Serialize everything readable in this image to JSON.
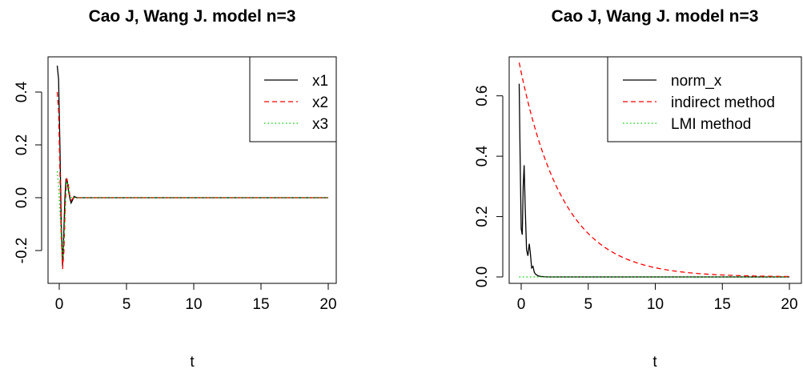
{
  "chart_data": [
    {
      "type": "line",
      "title": "Cao J, Wang J. model n=3",
      "xlabel": "t",
      "ylabel": "",
      "xlim": [
        0,
        20
      ],
      "ylim": [
        -0.3,
        0.5
      ],
      "x_ticks": [
        0,
        5,
        10,
        15,
        20
      ],
      "y_ticks": [
        -0.2,
        0.0,
        0.2,
        0.4
      ],
      "x_tick_labels": [
        "0",
        "5",
        "10",
        "15",
        "20"
      ],
      "y_tick_labels": [
        "-0.2",
        "0.0",
        "0.2",
        "0.4"
      ],
      "legend": "top-right",
      "grid": false,
      "series": [
        {
          "name": "x1",
          "color": "#000000",
          "dash": "solid",
          "points": [
            [
              -0.15,
              0.5
            ],
            [
              -0.05,
              0.45
            ],
            [
              0.05,
              0.2
            ],
            [
              0.15,
              -0.1
            ],
            [
              0.25,
              -0.26
            ],
            [
              0.33,
              -0.15
            ],
            [
              0.42,
              0.0
            ],
            [
              0.5,
              0.07
            ],
            [
              0.58,
              0.07
            ],
            [
              0.68,
              0.03
            ],
            [
              0.78,
              0.0
            ],
            [
              0.88,
              -0.02
            ],
            [
              0.98,
              -0.01
            ],
            [
              1.1,
              0.005
            ],
            [
              1.3,
              0.0
            ],
            [
              1.6,
              0.0
            ],
            [
              2.0,
              0.0
            ],
            [
              20.0,
              0.0
            ]
          ]
        },
        {
          "name": "x2",
          "color": "#ff0000",
          "dash": "dashed",
          "points": [
            [
              -0.15,
              0.4
            ],
            [
              -0.05,
              0.33
            ],
            [
              0.05,
              0.1
            ],
            [
              0.15,
              -0.15
            ],
            [
              0.25,
              -0.27
            ],
            [
              0.35,
              -0.2
            ],
            [
              0.45,
              -0.02
            ],
            [
              0.55,
              0.07
            ],
            [
              0.65,
              0.06
            ],
            [
              0.78,
              0.01
            ],
            [
              0.9,
              -0.01
            ],
            [
              1.05,
              0.0
            ],
            [
              1.3,
              0.0
            ],
            [
              2.0,
              0.0
            ],
            [
              20.0,
              0.0
            ]
          ]
        },
        {
          "name": "x3",
          "color": "#00cd00",
          "dash": "dotted",
          "points": [
            [
              -0.15,
              0.1
            ],
            [
              -0.05,
              0.05
            ],
            [
              0.05,
              -0.05
            ],
            [
              0.15,
              -0.15
            ],
            [
              0.25,
              -0.23
            ],
            [
              0.35,
              -0.17
            ],
            [
              0.45,
              -0.04
            ],
            [
              0.55,
              0.06
            ],
            [
              0.65,
              0.05
            ],
            [
              0.78,
              0.01
            ],
            [
              0.9,
              0.0
            ],
            [
              1.2,
              0.0
            ],
            [
              2.0,
              0.0
            ],
            [
              20.0,
              0.0
            ]
          ]
        }
      ]
    },
    {
      "type": "line",
      "title": "Cao J, Wang J. model n=3",
      "xlabel": "t",
      "ylabel": "",
      "xlim": [
        0,
        20
      ],
      "ylim": [
        0,
        0.7
      ],
      "x_ticks": [
        0,
        5,
        10,
        15,
        20
      ],
      "y_ticks": [
        0.0,
        0.2,
        0.4,
        0.6
      ],
      "x_tick_labels": [
        "0",
        "5",
        "10",
        "15",
        "20"
      ],
      "y_tick_labels": [
        "0.0",
        "0.2",
        "0.4",
        "0.6"
      ],
      "legend": "top-right",
      "grid": false,
      "series": [
        {
          "name": "norm_x",
          "color": "#000000",
          "dash": "solid",
          "points": [
            [
              -0.15,
              0.64
            ],
            [
              -0.08,
              0.4
            ],
            [
              0.0,
              0.16
            ],
            [
              0.08,
              0.14
            ],
            [
              0.15,
              0.3
            ],
            [
              0.22,
              0.37
            ],
            [
              0.3,
              0.23
            ],
            [
              0.4,
              0.09
            ],
            [
              0.5,
              0.07
            ],
            [
              0.6,
              0.11
            ],
            [
              0.68,
              0.08
            ],
            [
              0.78,
              0.03
            ],
            [
              0.88,
              0.035
            ],
            [
              0.98,
              0.015
            ],
            [
              1.1,
              0.008
            ],
            [
              1.3,
              0.003
            ],
            [
              1.6,
              0.001
            ],
            [
              2.0,
              0.0
            ],
            [
              20.0,
              0.0
            ]
          ]
        },
        {
          "name": "indirect method",
          "color": "#ff0000",
          "dash": "dashed",
          "func": "exp",
          "a": 0.71,
          "k": 0.31,
          "x0": -0.15,
          "x1": 20
        },
        {
          "name": "LMI method",
          "color": "#00cd00",
          "dash": "dotted",
          "points": [
            [
              -0.15,
              0.0
            ],
            [
              20.0,
              0.0
            ]
          ]
        }
      ]
    }
  ]
}
